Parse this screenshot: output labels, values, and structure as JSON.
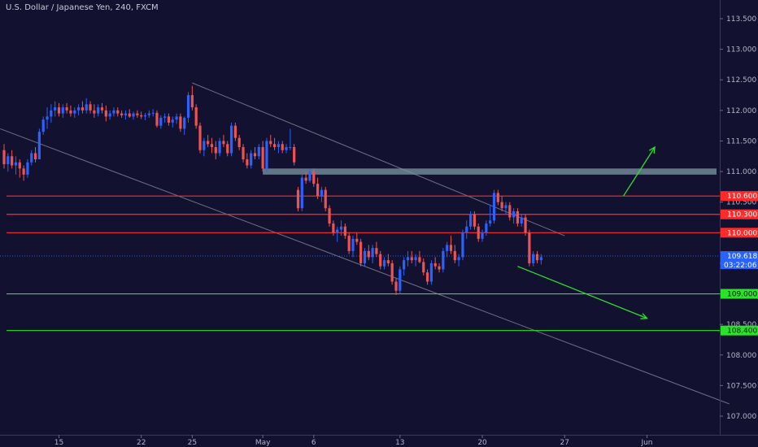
{
  "chart_data": {
    "type": "candlestick",
    "title": "U.S. Dollar / Japanese Yen, 240, FXCM",
    "y_range": [
      106.9,
      113.7
    ],
    "y_ticks": [
      "107.000",
      "107.500",
      "108.000",
      "108.500",
      "109.000",
      "109.500",
      "110.000",
      "110.500",
      "111.000",
      "111.500",
      "112.000",
      "112.500",
      "113.000",
      "113.500"
    ],
    "x_ticks": [
      {
        "label": "15",
        "bar": 14
      },
      {
        "label": "22",
        "bar": 35
      },
      {
        "label": "25",
        "bar": 48
      },
      {
        "label": "May",
        "bar": 66
      },
      {
        "label": "6",
        "bar": 79
      },
      {
        "label": "13",
        "bar": 101
      },
      {
        "label": "20",
        "bar": 122
      },
      {
        "label": "27",
        "bar": 143
      },
      {
        "label": "Jun",
        "bar": 164
      }
    ],
    "ohlc": [
      [
        111.35,
        111.45,
        111.05,
        111.12
      ],
      [
        111.12,
        111.3,
        111.0,
        111.25
      ],
      [
        111.25,
        111.35,
        111.05,
        111.1
      ],
      [
        111.1,
        111.25,
        110.95,
        111.15
      ],
      [
        111.15,
        111.2,
        110.9,
        111.05
      ],
      [
        111.05,
        111.1,
        110.85,
        110.95
      ],
      [
        110.95,
        111.2,
        110.9,
        111.15
      ],
      [
        111.15,
        111.35,
        111.1,
        111.3
      ],
      [
        111.3,
        111.4,
        111.15,
        111.2
      ],
      [
        111.2,
        111.7,
        111.2,
        111.65
      ],
      [
        111.65,
        111.9,
        111.6,
        111.85
      ],
      [
        111.85,
        112.05,
        111.7,
        111.9
      ],
      [
        111.9,
        112.1,
        111.8,
        112.0
      ],
      [
        112.0,
        112.15,
        111.9,
        112.05
      ],
      [
        112.05,
        112.12,
        111.9,
        111.95
      ],
      [
        111.95,
        112.1,
        111.88,
        112.05
      ],
      [
        112.05,
        112.12,
        111.95,
        112.0
      ],
      [
        112.0,
        112.08,
        111.9,
        111.95
      ],
      [
        111.95,
        112.05,
        111.88,
        112.0
      ],
      [
        112.0,
        112.1,
        111.92,
        112.05
      ],
      [
        112.05,
        112.15,
        111.95,
        112.0
      ],
      [
        112.0,
        112.2,
        111.95,
        112.1
      ],
      [
        112.1,
        112.15,
        111.95,
        112.0
      ],
      [
        112.0,
        112.1,
        111.88,
        111.95
      ],
      [
        111.95,
        112.1,
        111.9,
        112.05
      ],
      [
        112.05,
        112.12,
        111.95,
        112.0
      ],
      [
        112.0,
        112.08,
        111.82,
        111.9
      ],
      [
        111.9,
        112.0,
        111.85,
        111.95
      ],
      [
        111.95,
        112.05,
        111.9,
        112.0
      ],
      [
        112.0,
        112.05,
        111.9,
        111.95
      ],
      [
        111.95,
        112.0,
        111.88,
        111.92
      ],
      [
        111.92,
        112.0,
        111.85,
        111.95
      ],
      [
        111.95,
        112.02,
        111.88,
        111.9
      ],
      [
        111.9,
        111.98,
        111.85,
        111.95
      ],
      [
        111.95,
        112.0,
        111.88,
        111.92
      ],
      [
        111.92,
        111.98,
        111.86,
        111.9
      ],
      [
        111.9,
        111.96,
        111.84,
        111.92
      ],
      [
        111.92,
        112.0,
        111.88,
        111.95
      ],
      [
        111.95,
        112.02,
        111.9,
        111.96
      ],
      [
        111.96,
        112.0,
        111.72,
        111.75
      ],
      [
        111.75,
        111.92,
        111.7,
        111.88
      ],
      [
        111.88,
        111.95,
        111.8,
        111.9
      ],
      [
        111.9,
        111.95,
        111.75,
        111.8
      ],
      [
        111.8,
        111.9,
        111.72,
        111.85
      ],
      [
        111.85,
        111.95,
        111.78,
        111.9
      ],
      [
        111.9,
        111.95,
        111.65,
        111.7
      ],
      [
        111.7,
        111.9,
        111.6,
        111.88
      ],
      [
        111.88,
        112.3,
        111.8,
        112.25
      ],
      [
        112.25,
        112.4,
        112.0,
        112.05
      ],
      [
        112.05,
        112.1,
        111.7,
        111.75
      ],
      [
        111.75,
        111.8,
        111.3,
        111.35
      ],
      [
        111.35,
        111.55,
        111.25,
        111.5
      ],
      [
        111.5,
        111.6,
        111.4,
        111.45
      ],
      [
        111.45,
        111.55,
        111.3,
        111.4
      ],
      [
        111.4,
        111.5,
        111.2,
        111.3
      ],
      [
        111.3,
        111.55,
        111.25,
        111.5
      ],
      [
        111.5,
        111.6,
        111.4,
        111.45
      ],
      [
        111.45,
        111.5,
        111.25,
        111.3
      ],
      [
        111.3,
        111.8,
        111.25,
        111.75
      ],
      [
        111.75,
        111.8,
        111.5,
        111.55
      ],
      [
        111.55,
        111.6,
        111.35,
        111.4
      ],
      [
        111.4,
        111.45,
        111.15,
        111.2
      ],
      [
        111.2,
        111.3,
        111.05,
        111.1
      ],
      [
        111.1,
        111.35,
        111.05,
        111.3
      ],
      [
        111.3,
        111.4,
        111.2,
        111.25
      ],
      [
        111.25,
        111.45,
        111.2,
        111.4
      ],
      [
        111.4,
        111.5,
        111.0,
        111.05
      ],
      [
        111.05,
        111.55,
        111.0,
        111.5
      ],
      [
        111.5,
        111.6,
        111.4,
        111.45
      ],
      [
        111.45,
        111.55,
        111.35,
        111.4
      ],
      [
        111.4,
        111.5,
        111.3,
        111.45
      ],
      [
        111.45,
        111.5,
        111.3,
        111.35
      ],
      [
        111.35,
        111.45,
        111.3,
        111.4
      ],
      [
        111.4,
        111.7,
        111.35,
        111.4
      ],
      [
        111.4,
        111.45,
        111.1,
        111.15
      ],
      [
        110.7,
        110.75,
        110.35,
        110.4
      ],
      [
        110.4,
        110.95,
        110.35,
        110.9
      ],
      [
        110.9,
        111.0,
        110.8,
        110.85
      ],
      [
        110.85,
        111.05,
        110.82,
        111.0
      ],
      [
        111.0,
        111.05,
        110.75,
        110.8
      ],
      [
        110.8,
        110.9,
        110.55,
        110.6
      ],
      [
        110.6,
        110.75,
        110.5,
        110.7
      ],
      [
        110.7,
        110.75,
        110.35,
        110.4
      ],
      [
        110.4,
        110.45,
        110.1,
        110.15
      ],
      [
        110.15,
        110.2,
        109.95,
        110.0
      ],
      [
        110.0,
        110.1,
        109.85,
        110.05
      ],
      [
        110.05,
        110.2,
        109.95,
        110.1
      ],
      [
        110.1,
        110.15,
        109.9,
        109.95
      ],
      [
        109.95,
        110.0,
        109.65,
        109.7
      ],
      [
        109.7,
        109.95,
        109.6,
        109.9
      ],
      [
        109.9,
        110.0,
        109.8,
        109.85
      ],
      [
        109.85,
        109.9,
        109.45,
        109.5
      ],
      [
        109.5,
        109.75,
        109.45,
        109.7
      ],
      [
        109.7,
        109.8,
        109.55,
        109.6
      ],
      [
        109.6,
        109.8,
        109.5,
        109.75
      ],
      [
        109.75,
        109.85,
        109.6,
        109.65
      ],
      [
        109.65,
        109.7,
        109.4,
        109.45
      ],
      [
        109.45,
        109.6,
        109.4,
        109.55
      ],
      [
        109.55,
        109.65,
        109.45,
        109.5
      ],
      [
        109.5,
        109.55,
        109.15,
        109.2
      ],
      [
        109.2,
        109.25,
        108.98,
        109.05
      ],
      [
        109.05,
        109.45,
        109.0,
        109.4
      ],
      [
        109.4,
        109.6,
        109.3,
        109.55
      ],
      [
        109.55,
        109.7,
        109.45,
        109.6
      ],
      [
        109.6,
        109.7,
        109.5,
        109.55
      ],
      [
        109.55,
        109.65,
        109.45,
        109.6
      ],
      [
        109.6,
        109.7,
        109.5,
        109.52
      ],
      [
        109.52,
        109.58,
        109.3,
        109.35
      ],
      [
        109.35,
        109.4,
        109.15,
        109.2
      ],
      [
        109.2,
        109.55,
        109.15,
        109.5
      ],
      [
        109.5,
        109.6,
        109.4,
        109.45
      ],
      [
        109.45,
        109.5,
        109.35,
        109.4
      ],
      [
        109.4,
        109.75,
        109.35,
        109.7
      ],
      [
        109.7,
        109.85,
        109.6,
        109.8
      ],
      [
        109.8,
        109.95,
        109.65,
        109.7
      ],
      [
        109.7,
        109.8,
        109.5,
        109.55
      ],
      [
        109.55,
        109.65,
        109.45,
        109.6
      ],
      [
        109.6,
        110.05,
        109.55,
        110.0
      ],
      [
        110.0,
        110.2,
        109.9,
        110.1
      ],
      [
        110.1,
        110.35,
        110.05,
        110.3
      ],
      [
        110.3,
        110.35,
        110.05,
        110.1
      ],
      [
        110.1,
        110.15,
        109.85,
        109.9
      ],
      [
        109.9,
        110.05,
        109.85,
        110.0
      ],
      [
        110.0,
        110.2,
        109.95,
        110.15
      ],
      [
        110.15,
        110.45,
        110.1,
        110.2
      ],
      [
        110.2,
        110.7,
        110.15,
        110.65
      ],
      [
        110.65,
        110.7,
        110.45,
        110.5
      ],
      [
        110.5,
        110.6,
        110.35,
        110.4
      ],
      [
        110.4,
        110.5,
        110.3,
        110.45
      ],
      [
        110.45,
        110.5,
        110.2,
        110.25
      ],
      [
        110.25,
        110.4,
        110.15,
        110.35
      ],
      [
        110.35,
        110.4,
        110.1,
        110.15
      ],
      [
        110.15,
        110.3,
        110.1,
        110.25
      ],
      [
        110.25,
        110.3,
        109.95,
        110.0
      ],
      [
        110.0,
        110.05,
        109.45,
        109.5
      ],
      [
        109.5,
        109.7,
        109.45,
        109.65
      ],
      [
        109.65,
        109.7,
        109.5,
        109.55
      ],
      [
        109.55,
        109.65,
        109.48,
        109.6
      ]
    ],
    "levels": [
      {
        "value": 110.6,
        "label": "110.600",
        "color": "#ff2b2b",
        "start_bar": 0
      },
      {
        "value": 110.3,
        "label": "110.300",
        "color": "#ff2b2b",
        "start_bar": 0
      },
      {
        "value": 110.0,
        "label": "110.000",
        "color": "#ff2b2b",
        "start_bar": 0
      },
      {
        "value": 109.0,
        "label": "109.000",
        "color": "#2be22b",
        "start_bar": 0
      },
      {
        "value": 108.4,
        "label": "108.400",
        "color": "#2be22b",
        "start_bar": 0
      }
    ],
    "last_price": {
      "value": 109.618,
      "label": "109.618",
      "countdown": "03:22:06",
      "color": "#2962ff"
    },
    "zone": {
      "from_bar": 66,
      "to_bar": 186,
      "low": 110.95,
      "high": 111.05,
      "color": "#7e97a3"
    },
    "trendlines": [
      {
        "from": [
          -1,
          111.7
        ],
        "to": [
          185,
          107.2
        ],
        "color": "#8e8e9e"
      },
      {
        "from": [
          48,
          112.45
        ],
        "to": [
          143,
          109.95
        ],
        "color": "#8e8e9e"
      }
    ],
    "arrows": [
      {
        "from": [
          158,
          110.6
        ],
        "to": [
          166,
          111.4
        ],
        "color": "#2be22b"
      },
      {
        "from": [
          131,
          109.45
        ],
        "to": [
          164,
          108.6
        ],
        "color": "#2be22b"
      }
    ],
    "colors": {
      "up": "#2962ff",
      "down": "#ef5350",
      "background": "#131130",
      "axis_text": "#b2b5c4"
    }
  }
}
